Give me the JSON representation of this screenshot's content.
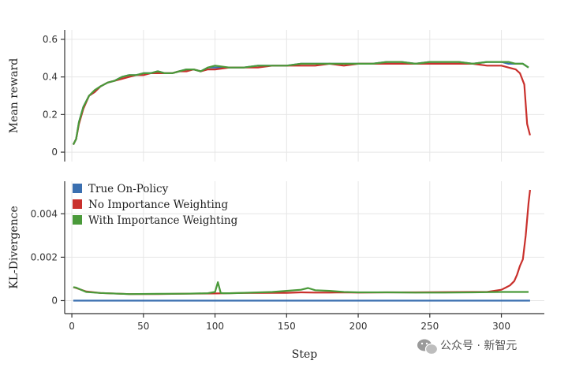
{
  "chart_data": [
    {
      "type": "line",
      "title": "",
      "xlabel": "",
      "ylabel": "Mean reward",
      "xlim": [
        -5,
        330
      ],
      "ylim": [
        -0.05,
        0.65
      ],
      "xticks": [
        0,
        50,
        100,
        150,
        200,
        250,
        300
      ],
      "yticks": [
        0,
        0.2,
        0.4,
        0.6
      ],
      "ytick_labels": [
        "0",
        "0.2",
        "0.4",
        "0.6"
      ],
      "grid": true,
      "series": [
        {
          "name": "True On-Policy",
          "color": "#3a6fb0",
          "x": [
            1,
            3,
            5,
            8,
            12,
            16,
            20,
            25,
            30,
            35,
            40,
            45,
            50,
            55,
            60,
            65,
            70,
            75,
            80,
            85,
            90,
            95,
            100,
            110,
            120,
            130,
            140,
            150,
            160,
            170,
            180,
            190,
            200,
            210,
            220,
            230,
            240,
            250,
            260,
            270,
            280,
            290,
            300,
            305,
            310,
            315,
            319
          ],
          "y": [
            0.04,
            0.07,
            0.16,
            0.24,
            0.3,
            0.32,
            0.35,
            0.37,
            0.38,
            0.4,
            0.41,
            0.41,
            0.42,
            0.42,
            0.43,
            0.42,
            0.42,
            0.43,
            0.44,
            0.44,
            0.43,
            0.45,
            0.45,
            0.45,
            0.45,
            0.46,
            0.46,
            0.46,
            0.47,
            0.47,
            0.47,
            0.47,
            0.47,
            0.47,
            0.48,
            0.48,
            0.47,
            0.48,
            0.48,
            0.48,
            0.47,
            0.48,
            0.48,
            0.47,
            0.47,
            0.47,
            0.45
          ]
        },
        {
          "name": "No Importance Weighting",
          "color": "#c9302c",
          "x": [
            1,
            3,
            5,
            8,
            12,
            16,
            20,
            25,
            30,
            35,
            40,
            45,
            50,
            55,
            60,
            65,
            70,
            75,
            80,
            85,
            90,
            95,
            100,
            110,
            120,
            130,
            140,
            150,
            160,
            170,
            180,
            190,
            200,
            210,
            220,
            230,
            240,
            250,
            260,
            270,
            280,
            290,
            300,
            305,
            310,
            313,
            316,
            318,
            320
          ],
          "y": [
            0.04,
            0.07,
            0.15,
            0.23,
            0.3,
            0.32,
            0.35,
            0.37,
            0.38,
            0.39,
            0.4,
            0.41,
            0.41,
            0.42,
            0.42,
            0.42,
            0.42,
            0.43,
            0.43,
            0.44,
            0.43,
            0.44,
            0.44,
            0.45,
            0.45,
            0.45,
            0.46,
            0.46,
            0.46,
            0.46,
            0.47,
            0.46,
            0.47,
            0.47,
            0.47,
            0.47,
            0.47,
            0.47,
            0.47,
            0.47,
            0.47,
            0.46,
            0.46,
            0.45,
            0.44,
            0.42,
            0.36,
            0.15,
            0.09
          ]
        },
        {
          "name": "With Importance Weighting",
          "color": "#4a9a3a",
          "x": [
            1,
            3,
            5,
            8,
            12,
            16,
            20,
            25,
            30,
            35,
            40,
            45,
            50,
            55,
            60,
            65,
            70,
            75,
            80,
            85,
            90,
            95,
            100,
            110,
            120,
            130,
            140,
            150,
            160,
            170,
            180,
            190,
            200,
            210,
            220,
            230,
            240,
            250,
            260,
            270,
            280,
            290,
            300,
            305,
            310,
            315,
            319
          ],
          "y": [
            0.04,
            0.07,
            0.16,
            0.24,
            0.3,
            0.33,
            0.35,
            0.37,
            0.38,
            0.4,
            0.41,
            0.41,
            0.42,
            0.42,
            0.43,
            0.42,
            0.42,
            0.43,
            0.44,
            0.44,
            0.43,
            0.45,
            0.46,
            0.45,
            0.45,
            0.46,
            0.46,
            0.46,
            0.47,
            0.47,
            0.47,
            0.47,
            0.47,
            0.47,
            0.48,
            0.48,
            0.47,
            0.48,
            0.48,
            0.48,
            0.47,
            0.48,
            0.48,
            0.48,
            0.47,
            0.47,
            0.45
          ]
        }
      ]
    },
    {
      "type": "line",
      "title": "",
      "xlabel": "Step",
      "ylabel": "KL-Divergence",
      "xlim": [
        -5,
        330
      ],
      "ylim": [
        -0.0006,
        0.0055
      ],
      "xticks": [
        0,
        50,
        100,
        150,
        200,
        250,
        300
      ],
      "xtick_labels": [
        "0",
        "50",
        "100",
        "150",
        "200",
        "250",
        "300"
      ],
      "yticks": [
        0,
        0.002,
        0.004
      ],
      "ytick_labels": [
        "0",
        "0.002",
        "0.004"
      ],
      "grid": true,
      "legend": "top-left",
      "series": [
        {
          "name": "True On-Policy",
          "color": "#3a6fb0",
          "x": [
            1,
            320
          ],
          "y": [
            0,
            0
          ]
        },
        {
          "name": "No Importance Weighting",
          "color": "#c9302c",
          "x": [
            1,
            3,
            10,
            20,
            40,
            60,
            80,
            100,
            120,
            140,
            150,
            160,
            170,
            180,
            190,
            200,
            220,
            240,
            260,
            280,
            290,
            295,
            300,
            303,
            306,
            309,
            311,
            313,
            315,
            317,
            319,
            320
          ],
          "y": [
            0.00062,
            0.00058,
            0.00042,
            0.00035,
            0.0003,
            0.0003,
            0.00032,
            0.00033,
            0.00035,
            0.00036,
            0.00036,
            0.00038,
            0.00037,
            0.00037,
            0.00038,
            0.00037,
            0.00038,
            0.00038,
            0.00039,
            0.0004,
            0.0004,
            0.00045,
            0.0005,
            0.0006,
            0.0007,
            0.0009,
            0.0012,
            0.0016,
            0.0019,
            0.003,
            0.0045,
            0.0051
          ]
        },
        {
          "name": "With Importance Weighting",
          "color": "#4a9a3a",
          "x": [
            1,
            3,
            10,
            20,
            40,
            60,
            80,
            95,
            100,
            102,
            104,
            106,
            110,
            120,
            140,
            150,
            160,
            165,
            170,
            180,
            190,
            200,
            220,
            240,
            260,
            280,
            300,
            310,
            319
          ],
          "y": [
            0.00062,
            0.0006,
            0.0004,
            0.00035,
            0.0003,
            0.00031,
            0.00032,
            0.00034,
            0.0004,
            0.00085,
            0.00035,
            0.00034,
            0.00034,
            0.00036,
            0.0004,
            0.00045,
            0.0005,
            0.00058,
            0.00048,
            0.00045,
            0.0004,
            0.00038,
            0.00038,
            0.00037,
            0.00037,
            0.00038,
            0.0004,
            0.0004,
            0.0004
          ]
        }
      ]
    }
  ],
  "watermark": {
    "text": "公众号 · 新智元"
  }
}
